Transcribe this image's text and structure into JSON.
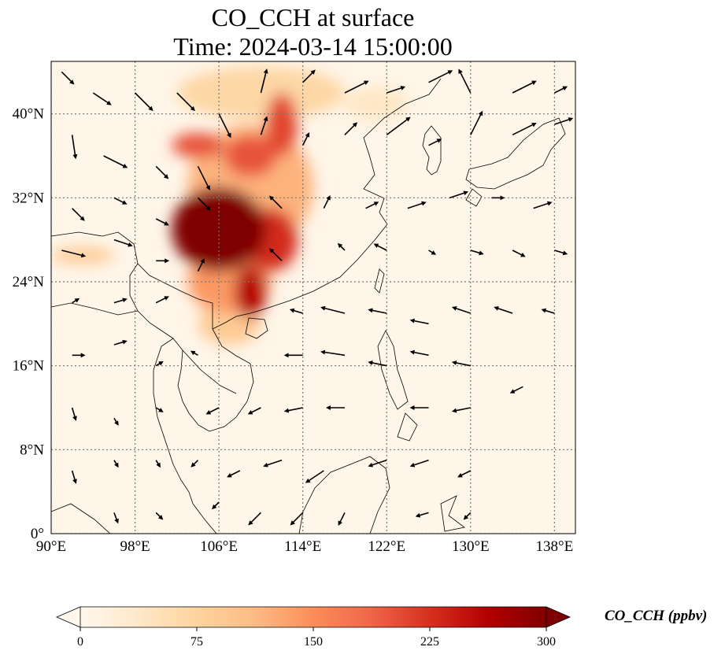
{
  "title": {
    "line1": "CO_CCH at surface",
    "line2": "Time: 2024-03-14 15:00:00"
  },
  "map": {
    "extent": {
      "lon": [
        90,
        140
      ],
      "lat": [
        0,
        45
      ]
    },
    "lon_ticks": [
      {
        "value": 90,
        "label": "90°E"
      },
      {
        "value": 98,
        "label": "98°E"
      },
      {
        "value": 106,
        "label": "106°E"
      },
      {
        "value": 114,
        "label": "114°E"
      },
      {
        "value": 122,
        "label": "122°E"
      },
      {
        "value": 130,
        "label": "130°E"
      },
      {
        "value": 138,
        "label": "138°E"
      }
    ],
    "lat_ticks": [
      {
        "value": 0,
        "label": "0°"
      },
      {
        "value": 8,
        "label": "8°N"
      },
      {
        "value": 16,
        "label": "16°N"
      },
      {
        "value": 24,
        "label": "24°N"
      },
      {
        "value": 32,
        "label": "32°N"
      },
      {
        "value": 40,
        "label": "40°N"
      }
    ],
    "gridlines": true,
    "colors": {
      "background": "#fff5e8",
      "grid": "#777777",
      "coast": "#000000"
    }
  },
  "colorbar": {
    "label": "CO_CCH (ppbv)",
    "ticks": [
      {
        "value": 0,
        "label": "0"
      },
      {
        "value": 75,
        "label": "75"
      },
      {
        "value": 150,
        "label": "150"
      },
      {
        "value": 225,
        "label": "225"
      },
      {
        "value": 300,
        "label": "300"
      }
    ],
    "range": [
      0,
      300
    ],
    "colormap": "OrRd",
    "colors": [
      "#fff7ec",
      "#fee8c8",
      "#fdd49e",
      "#fdbb84",
      "#fc8d59",
      "#ef6548",
      "#d7301f",
      "#b30000",
      "#7f0000"
    ]
  },
  "concentration_blobs": [
    {
      "lon": 106,
      "lat": 29,
      "rlon": 4.5,
      "rlat": 4,
      "value": 300
    },
    {
      "lon": 111,
      "lat": 28,
      "rlon": 2.5,
      "rlat": 3,
      "value": 230
    },
    {
      "lon": 109,
      "lat": 23,
      "rlon": 1.5,
      "rlat": 2.5,
      "value": 260
    },
    {
      "lon": 104,
      "lat": 37,
      "rlon": 2.5,
      "rlat": 1.2,
      "value": 200
    },
    {
      "lon": 109,
      "lat": 36,
      "rlon": 2.5,
      "rlat": 2,
      "value": 200
    },
    {
      "lon": 112,
      "lat": 39,
      "rlon": 1.5,
      "rlat": 3,
      "value": 210
    },
    {
      "lon": 107,
      "lat": 24,
      "rlon": 4,
      "rlat": 3,
      "value": 140
    },
    {
      "lon": 109,
      "lat": 33,
      "rlon": 6,
      "rlat": 6,
      "value": 120
    },
    {
      "lon": 110,
      "lat": 42,
      "rlon": 8,
      "rlat": 2.5,
      "value": 70
    },
    {
      "lon": 107,
      "lat": 20,
      "rlon": 3,
      "rlat": 2,
      "value": 90
    },
    {
      "lon": 93,
      "lat": 26.5,
      "rlon": 3,
      "rlat": 0.8,
      "value": 90
    },
    {
      "lon": 121,
      "lat": 41,
      "rlon": 3,
      "rlat": 1.5,
      "value": 40
    }
  ],
  "wind_vectors": [
    {
      "lon": 91,
      "lat": 44,
      "u": 1,
      "v": -1
    },
    {
      "lon": 94,
      "lat": 42,
      "u": 1.5,
      "v": -1
    },
    {
      "lon": 98,
      "lat": 42,
      "u": 1.5,
      "v": -1.5
    },
    {
      "lon": 102,
      "lat": 42,
      "u": 1.5,
      "v": -1.5
    },
    {
      "lon": 106,
      "lat": 40,
      "u": 1,
      "v": -2
    },
    {
      "lon": 110,
      "lat": 42,
      "u": 0.5,
      "v": 2
    },
    {
      "lon": 114,
      "lat": 43,
      "u": 1,
      "v": 1
    },
    {
      "lon": 118,
      "lat": 42,
      "u": 2,
      "v": 1
    },
    {
      "lon": 122,
      "lat": 42,
      "u": 1.5,
      "v": 0.5
    },
    {
      "lon": 126,
      "lat": 43,
      "u": 2,
      "v": 1
    },
    {
      "lon": 130,
      "lat": 42,
      "u": -1,
      "v": 2
    },
    {
      "lon": 134,
      "lat": 42,
      "u": 2,
      "v": 1
    },
    {
      "lon": 138,
      "lat": 42,
      "u": 1,
      "v": 0.5
    },
    {
      "lon": 92,
      "lat": 38,
      "u": 0.3,
      "v": -2
    },
    {
      "lon": 95,
      "lat": 36,
      "u": 2,
      "v": -1
    },
    {
      "lon": 100,
      "lat": 35,
      "u": 1,
      "v": -1
    },
    {
      "lon": 104,
      "lat": 35,
      "u": 1,
      "v": -2
    },
    {
      "lon": 110,
      "lat": 38,
      "u": 0.5,
      "v": 1.5
    },
    {
      "lon": 114,
      "lat": 37,
      "u": 0.5,
      "v": 1
    },
    {
      "lon": 118,
      "lat": 38,
      "u": 1,
      "v": 1
    },
    {
      "lon": 122,
      "lat": 38,
      "u": 2,
      "v": 1.5
    },
    {
      "lon": 126,
      "lat": 37,
      "u": 1,
      "v": 0.5
    },
    {
      "lon": 130,
      "lat": 38,
      "u": 1,
      "v": 2
    },
    {
      "lon": 134,
      "lat": 38,
      "u": 2,
      "v": 1
    },
    {
      "lon": 138,
      "lat": 39,
      "u": 1.5,
      "v": 0.5
    },
    {
      "lon": 92,
      "lat": 31,
      "u": 1,
      "v": -1
    },
    {
      "lon": 96,
      "lat": 32,
      "u": 1,
      "v": -0.5
    },
    {
      "lon": 100,
      "lat": 30,
      "u": 1,
      "v": -0.5
    },
    {
      "lon": 104,
      "lat": 32,
      "u": 1,
      "v": -1
    },
    {
      "lon": 112,
      "lat": 31,
      "u": -1,
      "v": 1
    },
    {
      "lon": 116,
      "lat": 31,
      "u": 0.5,
      "v": 1
    },
    {
      "lon": 120,
      "lat": 31,
      "u": 1,
      "v": 0.5
    },
    {
      "lon": 124,
      "lat": 31,
      "u": 1.5,
      "v": 0.5
    },
    {
      "lon": 128,
      "lat": 32,
      "u": 1.5,
      "v": 0.5
    },
    {
      "lon": 132,
      "lat": 32,
      "u": 1,
      "v": 0
    },
    {
      "lon": 136,
      "lat": 31,
      "u": 1.5,
      "v": 0.5
    },
    {
      "lon": 91,
      "lat": 27,
      "u": 2,
      "v": -0.5
    },
    {
      "lon": 96,
      "lat": 28,
      "u": 1.5,
      "v": -0.5
    },
    {
      "lon": 100,
      "lat": 26,
      "u": 1,
      "v": 0
    },
    {
      "lon": 104,
      "lat": 25,
      "u": 0.5,
      "v": 1
    },
    {
      "lon": 112,
      "lat": 26,
      "u": -1,
      "v": 1
    },
    {
      "lon": 118,
      "lat": 27,
      "u": -0.5,
      "v": 0.5
    },
    {
      "lon": 122,
      "lat": 27,
      "u": -1,
      "v": 0.5
    },
    {
      "lon": 126,
      "lat": 27,
      "u": 0.5,
      "v": -0.3
    },
    {
      "lon": 130,
      "lat": 27,
      "u": 1,
      "v": -0.3
    },
    {
      "lon": 134,
      "lat": 27,
      "u": 1,
      "v": -0.5
    },
    {
      "lon": 138,
      "lat": 27,
      "u": 1,
      "v": -0.3
    },
    {
      "lon": 92,
      "lat": 22,
      "u": 0.5,
      "v": 0.3
    },
    {
      "lon": 96,
      "lat": 22,
      "u": 1,
      "v": 0.3
    },
    {
      "lon": 100,
      "lat": 22,
      "u": 1,
      "v": 0.5
    },
    {
      "lon": 114,
      "lat": 21,
      "u": -1,
      "v": 0.3
    },
    {
      "lon": 118,
      "lat": 21,
      "u": -2,
      "v": 0.5
    },
    {
      "lon": 122,
      "lat": 21,
      "u": -1.5,
      "v": 0.3
    },
    {
      "lon": 126,
      "lat": 20,
      "u": -1.5,
      "v": 0.3
    },
    {
      "lon": 130,
      "lat": 21,
      "u": -1.5,
      "v": 0.5
    },
    {
      "lon": 134,
      "lat": 21,
      "u": -1.5,
      "v": 0.5
    },
    {
      "lon": 138,
      "lat": 21,
      "u": -1,
      "v": 0.3
    },
    {
      "lon": 92,
      "lat": 17,
      "u": 1,
      "v": 0
    },
    {
      "lon": 96,
      "lat": 18,
      "u": 1,
      "v": 0.3
    },
    {
      "lon": 100,
      "lat": 16,
      "u": 0.5,
      "v": 0.3
    },
    {
      "lon": 104,
      "lat": 17,
      "u": -0.5,
      "v": 0.3
    },
    {
      "lon": 114,
      "lat": 17,
      "u": -1.5,
      "v": 0
    },
    {
      "lon": 118,
      "lat": 17,
      "u": -2,
      "v": 0.3
    },
    {
      "lon": 122,
      "lat": 16,
      "u": -1.5,
      "v": 0.3
    },
    {
      "lon": 126,
      "lat": 17,
      "u": -1.5,
      "v": 0.3
    },
    {
      "lon": 130,
      "lat": 16,
      "u": -1.5,
      "v": 0.3
    },
    {
      "lon": 135,
      "lat": 14,
      "u": -1,
      "v": -0.5
    },
    {
      "lon": 92,
      "lat": 12,
      "u": 0.3,
      "v": -1
    },
    {
      "lon": 96,
      "lat": 11,
      "u": 0.3,
      "v": -0.5
    },
    {
      "lon": 100,
      "lat": 12,
      "u": 0.5,
      "v": -0.3
    },
    {
      "lon": 106,
      "lat": 12,
      "u": -1,
      "v": -0.5
    },
    {
      "lon": 110,
      "lat": 12,
      "u": -1,
      "v": -0.5
    },
    {
      "lon": 114,
      "lat": 12,
      "u": -1.5,
      "v": -0.3
    },
    {
      "lon": 118,
      "lat": 12,
      "u": -1.5,
      "v": 0
    },
    {
      "lon": 126,
      "lat": 12,
      "u": -1.5,
      "v": 0
    },
    {
      "lon": 130,
      "lat": 12,
      "u": -1.5,
      "v": -0.3
    },
    {
      "lon": 92,
      "lat": 6,
      "u": 0.3,
      "v": -1
    },
    {
      "lon": 96,
      "lat": 7,
      "u": 0.3,
      "v": -0.5
    },
    {
      "lon": 100,
      "lat": 7,
      "u": 0.3,
      "v": -0.5
    },
    {
      "lon": 104,
      "lat": 7,
      "u": -0.5,
      "v": -0.5
    },
    {
      "lon": 108,
      "lat": 6,
      "u": -1,
      "v": -0.5
    },
    {
      "lon": 112,
      "lat": 7,
      "u": -1.5,
      "v": -0.5
    },
    {
      "lon": 116,
      "lat": 6,
      "u": -1.5,
      "v": -1
    },
    {
      "lon": 122,
      "lat": 7,
      "u": -1.5,
      "v": -0.5
    },
    {
      "lon": 126,
      "lat": 7,
      "u": -1.5,
      "v": -0.5
    },
    {
      "lon": 130,
      "lat": 6,
      "u": -1,
      "v": -0.5
    },
    {
      "lon": 96,
      "lat": 2,
      "u": 0.3,
      "v": -0.8
    },
    {
      "lon": 100,
      "lat": 2,
      "u": 0.5,
      "v": -0.5
    },
    {
      "lon": 106,
      "lat": 3,
      "u": -0.5,
      "v": -0.5
    },
    {
      "lon": 110,
      "lat": 2,
      "u": -1,
      "v": -1
    },
    {
      "lon": 114,
      "lat": 2,
      "u": -1,
      "v": -1
    },
    {
      "lon": 118,
      "lat": 2,
      "u": -0.5,
      "v": -1
    },
    {
      "lon": 126,
      "lat": 2,
      "u": -1,
      "v": -0.3
    },
    {
      "lon": 130,
      "lat": 2,
      "u": -0.5,
      "v": -0.5
    }
  ]
}
